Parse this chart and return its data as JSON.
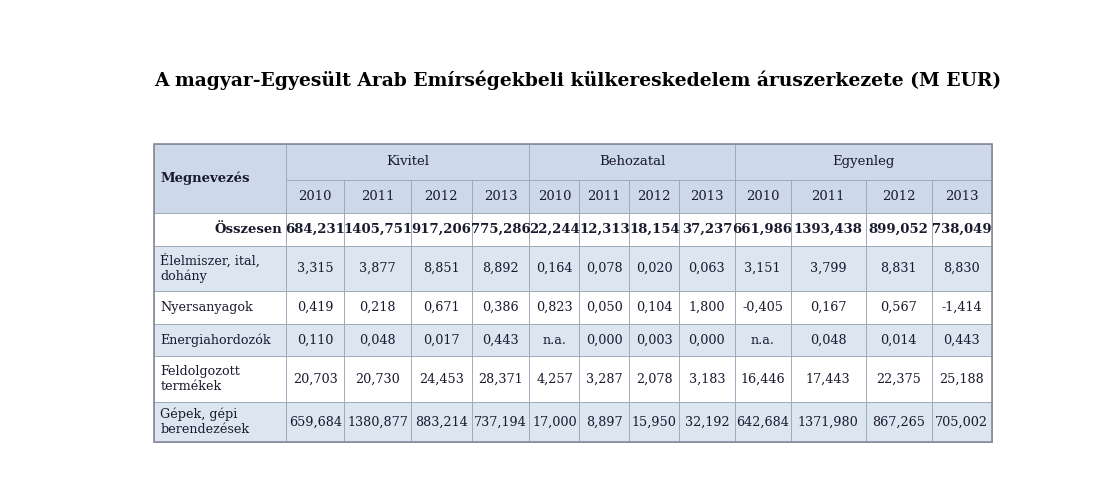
{
  "title": "A magyar-Egyesült Arab Emírségekbeli külkereskedelem áruszerkezete (M EUR)",
  "background_color": "#ffffff",
  "header_bg": "#cdd9e8",
  "row_bg_alt": "#dce6f1",
  "row_bg_white": "#ffffff",
  "col_groups": [
    "Kivitel",
    "Behozatal",
    "Egyenleg"
  ],
  "years": [
    "2010",
    "2011",
    "2012",
    "2013"
  ],
  "rows": [
    {
      "label": "Összesen",
      "label_align": "right",
      "bold": true,
      "bg": "#ffffff",
      "kivitel": [
        "684,231",
        "1405,751",
        "917,206",
        "775,286"
      ],
      "behozatal": [
        "22,244",
        "12,313",
        "18,154",
        "37,237"
      ],
      "egyenleg": [
        "661,986",
        "1393,438",
        "899,052",
        "738,049"
      ]
    },
    {
      "label": "Élelmiszer, ital,\ndohány",
      "label_align": "left",
      "bold": false,
      "bg": "#dce6f1",
      "kivitel": [
        "3,315",
        "3,877",
        "8,851",
        "8,892"
      ],
      "behozatal": [
        "0,164",
        "0,078",
        "0,020",
        "0,063"
      ],
      "egyenleg": [
        "3,151",
        "3,799",
        "8,831",
        "8,830"
      ]
    },
    {
      "label": "Nyersanyagok",
      "label_align": "left",
      "bold": false,
      "bg": "#ffffff",
      "kivitel": [
        "0,419",
        "0,218",
        "0,671",
        "0,386"
      ],
      "behozatal": [
        "0,823",
        "0,050",
        "0,104",
        "1,800"
      ],
      "egyenleg": [
        "-0,405",
        "0,167",
        "0,567",
        "-1,414"
      ]
    },
    {
      "label": "Energiahordozók",
      "label_align": "left",
      "bold": false,
      "bg": "#dce6f1",
      "kivitel": [
        "0,110",
        "0,048",
        "0,017",
        "0,443"
      ],
      "behozatal": [
        "n.a.",
        "0,000",
        "0,003",
        "0,000"
      ],
      "egyenleg": [
        "n.a.",
        "0,048",
        "0,014",
        "0,443"
      ]
    },
    {
      "label": "Feldolgozott\ntermékek",
      "label_align": "left",
      "bold": false,
      "bg": "#ffffff",
      "kivitel": [
        "20,703",
        "20,730",
        "24,453",
        "28,371"
      ],
      "behozatal": [
        "4,257",
        "3,287",
        "2,078",
        "3,183"
      ],
      "egyenleg": [
        "16,446",
        "17,443",
        "22,375",
        "25,188"
      ]
    },
    {
      "label": "Gépek, gépi\nberendezések",
      "label_align": "left",
      "bold": false,
      "bg": "#dce6f1",
      "kivitel": [
        "659,684",
        "1380,877",
        "883,214",
        "737,194"
      ],
      "behozatal": [
        "17,000",
        "8,897",
        "15,950",
        "32,192"
      ],
      "egyenleg": [
        "642,684",
        "1371,980",
        "867,265",
        "705,002"
      ]
    }
  ]
}
